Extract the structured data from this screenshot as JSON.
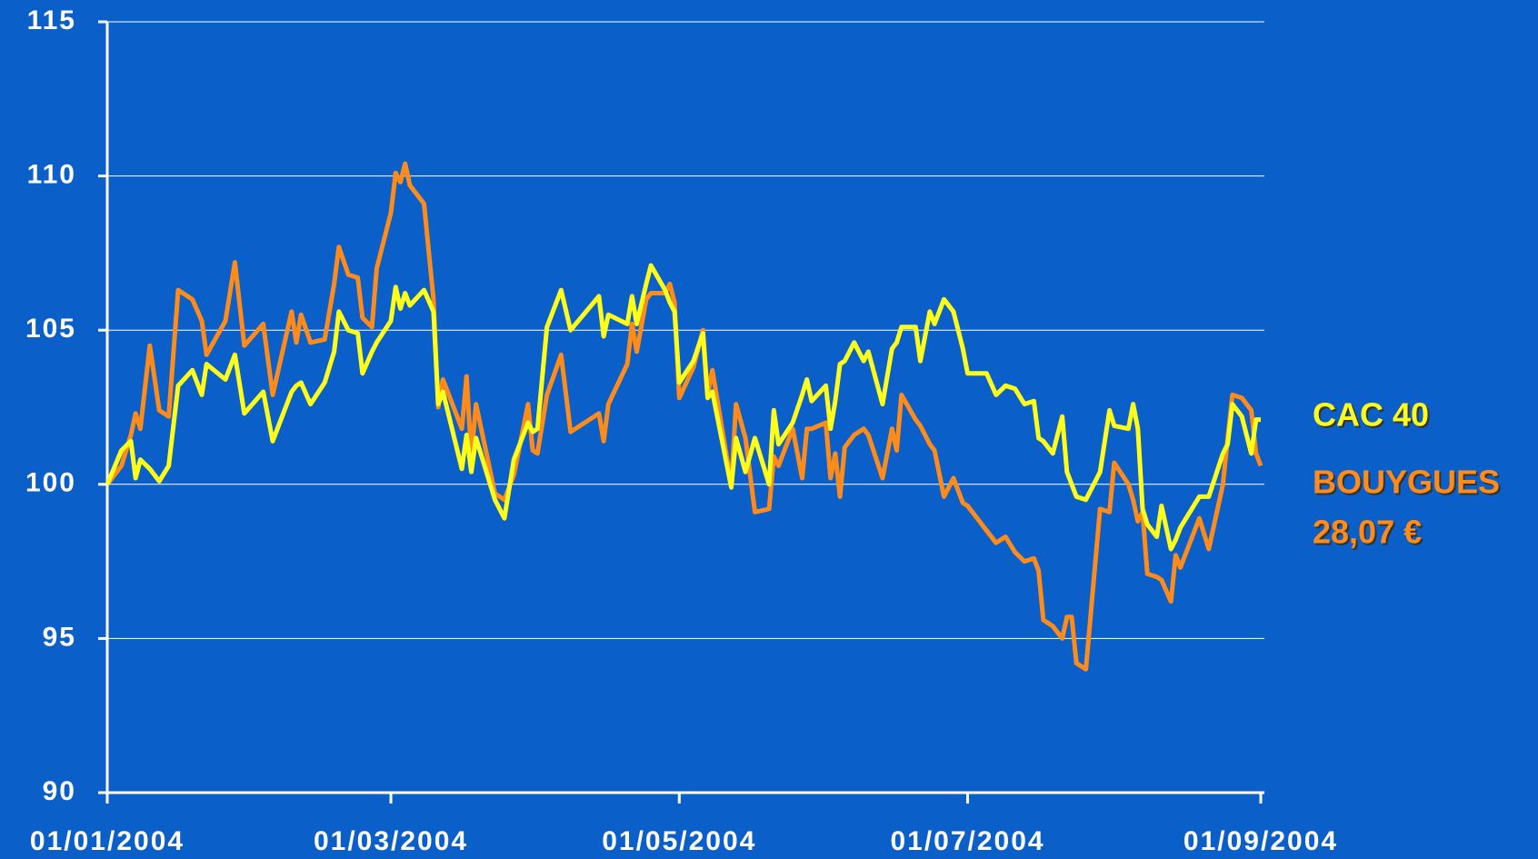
{
  "chart_data": {
    "type": "line",
    "x": [
      "2004-01-01",
      "2004-01-04",
      "2004-01-06",
      "2004-01-07",
      "2004-01-08",
      "2004-01-10",
      "2004-01-12",
      "2004-01-14",
      "2004-01-16",
      "2004-01-19",
      "2004-01-21",
      "2004-01-22",
      "2004-01-26",
      "2004-01-28",
      "2004-01-30",
      "2004-02-03",
      "2004-02-05",
      "2004-02-09",
      "2004-02-10",
      "2004-02-11",
      "2004-02-13",
      "2004-02-16",
      "2004-02-18",
      "2004-02-19",
      "2004-02-21",
      "2004-02-23",
      "2004-02-24",
      "2004-02-26",
      "2004-02-27",
      "2004-03-01",
      "2004-03-02",
      "2004-03-03",
      "2004-03-04",
      "2004-03-05",
      "2004-03-08",
      "2004-03-10",
      "2004-03-11",
      "2004-03-12",
      "2004-03-16",
      "2004-03-17",
      "2004-03-18",
      "2004-03-19",
      "2004-03-23",
      "2004-03-25",
      "2004-03-27",
      "2004-03-30",
      "2004-03-31",
      "2004-04-01",
      "2004-04-03",
      "2004-04-06",
      "2004-04-08",
      "2004-04-14",
      "2004-04-15",
      "2004-04-16",
      "2004-04-20",
      "2004-04-21",
      "2004-04-22",
      "2004-04-24",
      "2004-04-25",
      "2004-04-28",
      "2004-04-29",
      "2004-04-30",
      "2004-05-01",
      "2004-05-04",
      "2004-05-06",
      "2004-05-07",
      "2004-05-08",
      "2004-05-12",
      "2004-05-13",
      "2004-05-15",
      "2004-05-17",
      "2004-05-20",
      "2004-05-21",
      "2004-05-22",
      "2004-05-25",
      "2004-05-27",
      "2004-05-28",
      "2004-05-29",
      "2004-06-01",
      "2004-06-02",
      "2004-06-03",
      "2004-06-04",
      "2004-06-05",
      "2004-06-07",
      "2004-06-09",
      "2004-06-10",
      "2004-06-13",
      "2004-06-15",
      "2004-06-16",
      "2004-06-17",
      "2004-06-20",
      "2004-06-21",
      "2004-06-23",
      "2004-06-24",
      "2004-06-26",
      "2004-06-28",
      "2004-06-30",
      "2004-07-01",
      "2004-07-05",
      "2004-07-07",
      "2004-07-09",
      "2004-07-11",
      "2004-07-13",
      "2004-07-15",
      "2004-07-16",
      "2004-07-17",
      "2004-07-19",
      "2004-07-21",
      "2004-07-22",
      "2004-07-23",
      "2004-07-24",
      "2004-07-26",
      "2004-07-29",
      "2004-07-31",
      "2004-08-01",
      "2004-08-04",
      "2004-08-05",
      "2004-08-06",
      "2004-08-07",
      "2004-08-08",
      "2004-08-10",
      "2004-08-11",
      "2004-08-13",
      "2004-08-14",
      "2004-08-15",
      "2004-08-19",
      "2004-08-21",
      "2004-08-24",
      "2004-08-25",
      "2004-08-26",
      "2004-08-28",
      "2004-08-30",
      "2004-08-31",
      "2004-09-01"
    ],
    "series": [
      {
        "name": "CAC 40",
        "color": "#ffff1a",
        "values": [
          100,
          101.1,
          101.4,
          100.2,
          100.8,
          100.5,
          100.1,
          100.6,
          103.2,
          103.7,
          102.9,
          103.9,
          103.4,
          104.2,
          102.3,
          103.0,
          101.4,
          103.0,
          103.2,
          103.3,
          102.6,
          103.3,
          104.3,
          105.6,
          105.0,
          104.9,
          103.6,
          104.3,
          104.6,
          105.3,
          106.4,
          105.7,
          106.2,
          105.8,
          106.3,
          105.6,
          102.6,
          103.0,
          100.5,
          101.6,
          100.4,
          101.5,
          99.5,
          98.9,
          100.8,
          102.0,
          101.7,
          101.8,
          105.1,
          106.3,
          105.0,
          106.1,
          104.8,
          105.5,
          105.2,
          106.1,
          105.2,
          106.5,
          107.1,
          106.3,
          105.9,
          105.6,
          103.3,
          104.0,
          104.9,
          102.8,
          103.0,
          99.9,
          101.5,
          100.4,
          101.5,
          100.0,
          102.4,
          101.3,
          102.0,
          102.9,
          103.4,
          102.7,
          103.2,
          101.8,
          102.7,
          103.9,
          104.0,
          104.6,
          104.0,
          104.3,
          102.6,
          104.4,
          104.6,
          105.1,
          105.1,
          104.0,
          105.6,
          105.2,
          106.0,
          105.6,
          104.4,
          103.6,
          103.6,
          102.9,
          103.2,
          103.1,
          102.6,
          102.7,
          101.5,
          101.4,
          101.0,
          102.2,
          100.4,
          100.0,
          99.6,
          99.5,
          100.4,
          102.4,
          101.9,
          101.8,
          102.6,
          101.8,
          99.2,
          98.7,
          98.3,
          99.3,
          97.9,
          98.2,
          98.6,
          99.6,
          99.6,
          101.0,
          101.3,
          102.6,
          102.2,
          101.0,
          102.1,
          102.1
        ]
      },
      {
        "name": "BOUYGUES",
        "color": "#ff8c1a",
        "values": [
          100,
          100.6,
          101.6,
          102.3,
          101.8,
          104.5,
          102.4,
          102.2,
          106.3,
          106.0,
          105.3,
          104.2,
          105.3,
          107.2,
          104.5,
          105.2,
          102.9,
          105.6,
          104.6,
          105.5,
          104.6,
          104.7,
          106.5,
          107.7,
          106.8,
          106.7,
          105.4,
          105.1,
          107.0,
          108.8,
          110.1,
          109.8,
          110.4,
          109.7,
          109.1,
          106.0,
          102.5,
          103.4,
          101.8,
          103.5,
          100.9,
          102.6,
          99.7,
          99.5,
          100.3,
          102.6,
          101.1,
          101.0,
          102.9,
          104.2,
          101.7,
          102.3,
          101.4,
          102.6,
          103.9,
          105.2,
          104.3,
          106.0,
          106.2,
          106.2,
          106.5,
          105.9,
          102.8,
          103.8,
          105.0,
          102.9,
          103.7,
          100.0,
          102.6,
          101.5,
          99.1,
          99.2,
          100.9,
          100.6,
          101.8,
          100.2,
          101.8,
          101.8,
          102.0,
          100.2,
          101.0,
          99.6,
          101.2,
          101.6,
          101.8,
          101.6,
          100.2,
          101.8,
          101.1,
          102.9,
          102.1,
          101.9,
          101.3,
          101.1,
          99.6,
          100.2,
          99.4,
          99.3,
          98.5,
          98.1,
          98.3,
          97.8,
          97.5,
          97.6,
          97.2,
          95.6,
          95.4,
          95.0,
          95.7,
          95.7,
          94.2,
          94.0,
          99.2,
          99.1,
          100.7,
          100.0,
          99.5,
          98.8,
          99.1,
          97.1,
          97.0,
          96.9,
          96.2,
          97.7,
          97.3,
          98.9,
          97.9,
          100.0,
          101.5,
          102.9,
          102.8,
          102.4,
          101.0,
          100.6
        ]
      }
    ],
    "annotation": "28,07 €",
    "xlim": [
      "2004-01-01",
      "2004-09-01"
    ],
    "xticks": [
      {
        "value": "2004-01-01",
        "label": "01/01/2004"
      },
      {
        "value": "2004-03-01",
        "label": "01/03/2004"
      },
      {
        "value": "2004-05-01",
        "label": "01/05/2004"
      },
      {
        "value": "2004-07-01",
        "label": "01/07/2004"
      },
      {
        "value": "2004-09-01",
        "label": "01/09/2004"
      }
    ],
    "ylim": [
      90,
      115
    ],
    "yticks": [
      90,
      95,
      100,
      105,
      110,
      115
    ],
    "grid": true,
    "legend": "right"
  }
}
